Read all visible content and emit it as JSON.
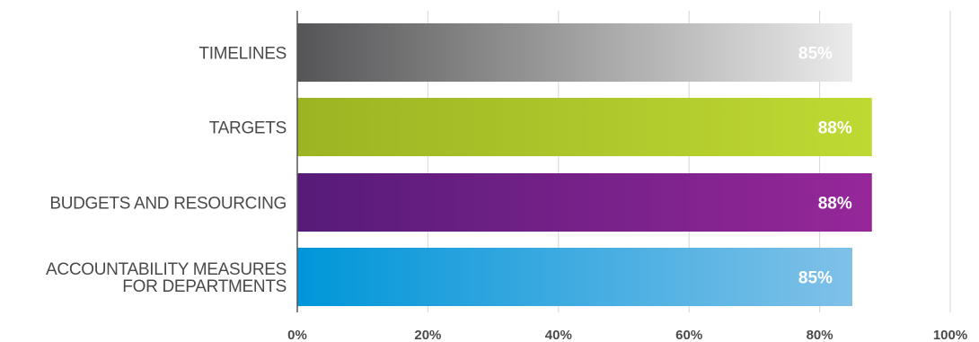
{
  "chart_data": {
    "type": "bar",
    "orientation": "horizontal",
    "categories": [
      "TIMELINES",
      "TARGETS",
      "BUDGETS AND RESOURCING",
      "ACCOUNTABILITY MEASURES FOR DEPARTMENTS"
    ],
    "category_lines": [
      [
        "TIMELINES"
      ],
      [
        "TARGETS"
      ],
      [
        "BUDGETS AND RESOURCING"
      ],
      [
        "ACCOUNTABILITY MEASURES",
        "FOR DEPARTMENTS"
      ]
    ],
    "values": [
      85,
      88,
      88,
      85
    ],
    "value_labels": [
      "85%",
      "88%",
      "88%",
      "85%"
    ],
    "bar_gradients": [
      [
        "#555557",
        "#ebebeb"
      ],
      [
        "#9cb423",
        "#bfd933"
      ],
      [
        "#561b78",
        "#96279a"
      ],
      [
        "#0096d9",
        "#80c1e8"
      ]
    ],
    "xlim": [
      0,
      100
    ],
    "x_ticks": [
      "0%",
      "20%",
      "40%",
      "60%",
      "80%",
      "100%"
    ],
    "grid": true,
    "legend": "none",
    "title": "",
    "xlabel": "",
    "ylabel": ""
  }
}
